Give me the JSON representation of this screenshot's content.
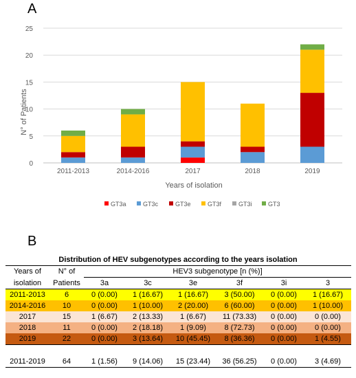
{
  "panel_a_label": "A",
  "panel_b_label": "B",
  "chart_data": {
    "type": "bar",
    "stacked": true,
    "categories": [
      "2011-2013",
      "2014-2016",
      "2017",
      "2018",
      "2019"
    ],
    "series": [
      {
        "name": "GT3a",
        "color": "#ff0000",
        "values": [
          0,
          0,
          1,
          0,
          0
        ]
      },
      {
        "name": "GT3c",
        "color": "#5b9bd5",
        "values": [
          1,
          1,
          2,
          2,
          3
        ]
      },
      {
        "name": "GT3e",
        "color": "#c00000",
        "values": [
          1,
          2,
          1,
          1,
          10
        ]
      },
      {
        "name": "GT3f",
        "color": "#ffc000",
        "values": [
          3,
          6,
          11,
          8,
          8
        ]
      },
      {
        "name": "GT3i",
        "color": "#a5a5a5",
        "values": [
          0,
          0,
          0,
          0,
          0
        ]
      },
      {
        "name": "GT3",
        "color": "#70ad47",
        "values": [
          1,
          1,
          0,
          0,
          1
        ]
      }
    ],
    "xlabel": "Years of isolation",
    "ylabel": "N° of Patients",
    "ylim": [
      0,
      25
    ],
    "yticks": [
      0,
      5,
      10,
      15,
      20,
      25
    ],
    "grid": true,
    "legend_position": "bottom"
  },
  "table": {
    "title": "Distribution of HEV subgenotypes according to the years isolation",
    "col_years": "Years of",
    "col_years2": "isolation",
    "col_n": "N° of",
    "col_n2": "Patients",
    "subtype_header": "HEV3 subgenotype [n (%)]",
    "subtypes": [
      "3a",
      "3c",
      "3e",
      "3f",
      "3i",
      "3"
    ],
    "rows": [
      {
        "year": "2011-2013",
        "n": "6",
        "color": "#ffff00",
        "cells": [
          "0 (0.00)",
          "1 (16.67)",
          "1 (16.67)",
          "3 (50.00)",
          "0 (0.00)",
          "1 (16.67)"
        ]
      },
      {
        "year": "2014-2016",
        "n": "10",
        "color": "#ffc000",
        "cells": [
          "0 (0.00)",
          "1 (10.00)",
          "2 (20.00)",
          "6 (60.00)",
          "0 (0.00)",
          "1 (10.00)"
        ]
      },
      {
        "year": "2017",
        "n": "15",
        "color": "#fbe5d6",
        "cells": [
          "1 (6.67)",
          "2 (13.33)",
          "1 (6.67)",
          "11 (73.33)",
          "0 (0.00)",
          "0 (0.00)"
        ]
      },
      {
        "year": "2018",
        "n": "11",
        "color": "#f4b183",
        "cells": [
          "0 (0.00)",
          "2 (18.18)",
          "1 (9.09)",
          "8 (72.73)",
          "0 (0.00)",
          "0 (0.00)"
        ]
      },
      {
        "year": "2019",
        "n": "22",
        "color": "#c55a11",
        "cells": [
          "0 (0.00)",
          "3 (13.64)",
          "10 (45.45)",
          "8 (36.36)",
          "0 (0.00)",
          "1 (4.55)"
        ]
      }
    ],
    "total": {
      "year": "2011-2019",
      "n": "64",
      "cells": [
        "1 (1.56)",
        "9 (14.06)",
        "15 (23.44)",
        "36 (56.25)",
        "0 (0.00)",
        "3 (4.69)"
      ]
    }
  }
}
